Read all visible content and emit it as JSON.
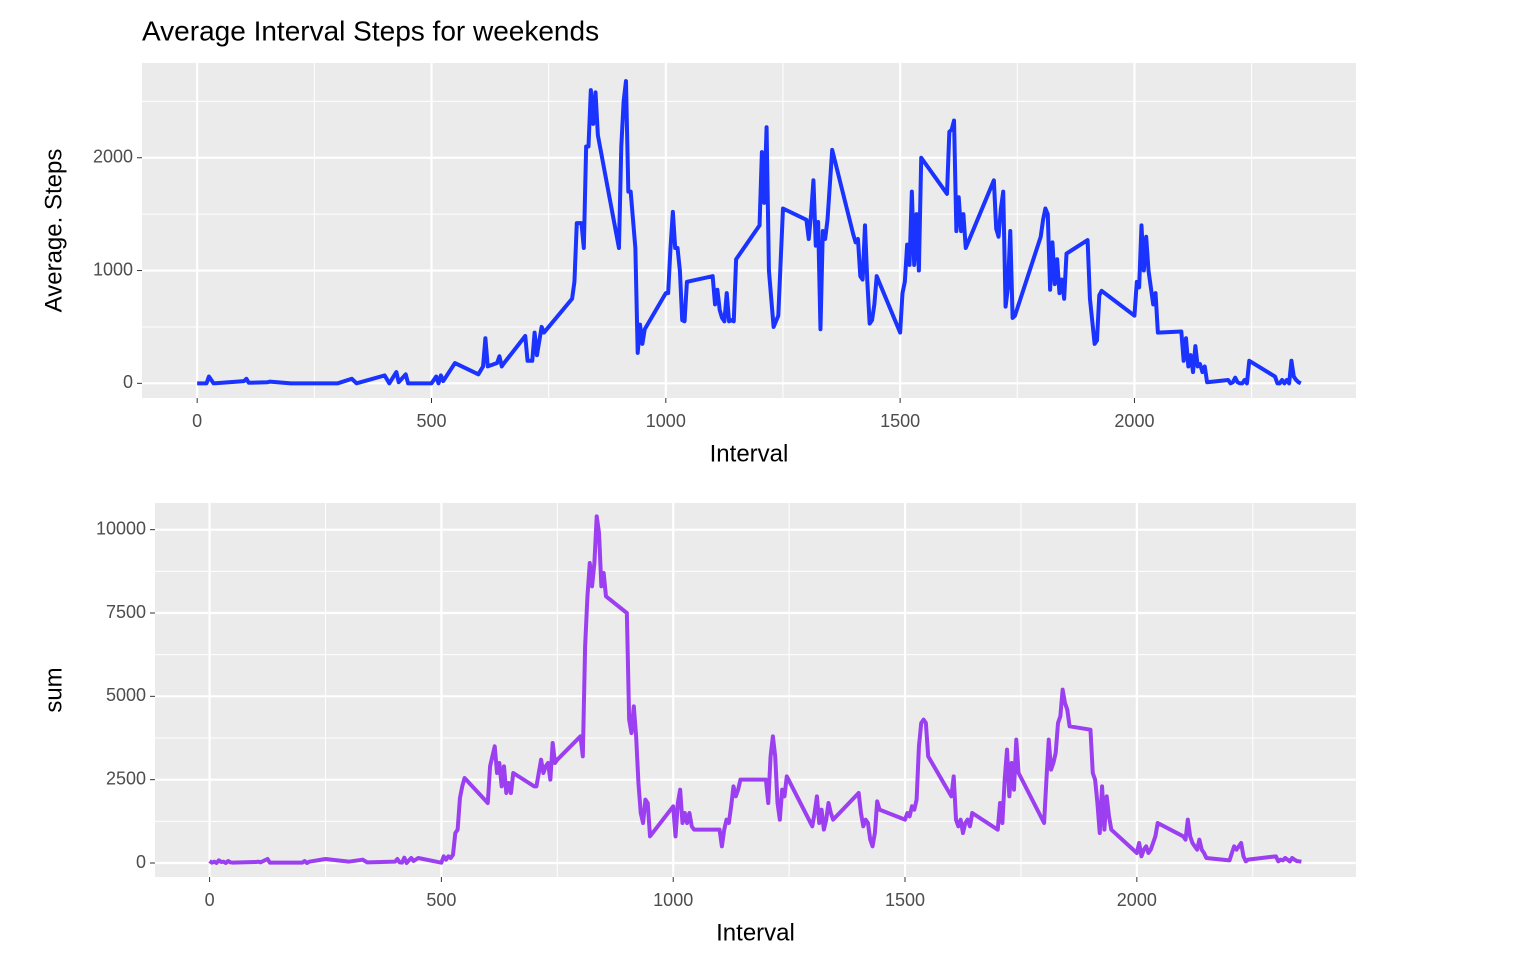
{
  "chart_data": [
    {
      "type": "line",
      "title": "Average Interval Steps for weekends",
      "xlabel": "Interval",
      "ylabel": "Average. Steps",
      "color": "#1a33ff",
      "grid": true,
      "xlim": [
        -117.75,
        2472.75
      ],
      "ylim": [
        -130,
        2840
      ],
      "xticks": [
        0,
        500,
        1000,
        1500,
        2000
      ],
      "yticks": [
        0,
        1000,
        2000
      ],
      "x_minor_grid": [
        250,
        750,
        1250,
        1750,
        2250
      ],
      "y_minor_grid": [
        500,
        1500,
        2500
      ],
      "x": [
        0,
        20,
        25,
        35,
        100,
        105,
        110,
        150,
        155,
        200,
        300,
        330,
        340,
        400,
        410,
        425,
        430,
        445,
        450,
        500,
        510,
        515,
        520,
        525,
        550,
        600,
        610,
        615,
        620,
        640,
        645,
        650,
        655,
        700,
        705,
        715,
        720,
        725,
        735,
        740,
        800,
        805,
        810,
        820,
        825,
        830,
        835,
        840,
        845,
        850,
        855,
        900,
        905,
        910,
        915,
        920,
        925,
        935,
        940,
        945,
        950,
        955,
        1000,
        1005,
        1010,
        1015,
        1020,
        1025,
        1030,
        1035,
        1040,
        1045,
        1100,
        1105,
        1110,
        1115,
        1120,
        1125,
        1130,
        1135,
        1140,
        1145,
        1150,
        1200,
        1205,
        1210,
        1215,
        1220,
        1230,
        1240,
        1250,
        1300,
        1305,
        1310,
        1315,
        1320,
        1325,
        1330,
        1335,
        1340,
        1345,
        1355,
        1400,
        1405,
        1410,
        1415,
        1420,
        1425,
        1430,
        1435,
        1440,
        1445,
        1450,
        1500,
        1505,
        1510,
        1515,
        1520,
        1525,
        1530,
        1535,
        1540,
        1545,
        1600,
        1605,
        1610,
        1615,
        1620,
        1625,
        1630,
        1635,
        1640,
        1700,
        1705,
        1710,
        1715,
        1720,
        1725,
        1730,
        1735,
        1740,
        1745,
        1800,
        1805,
        1810,
        1815,
        1820,
        1825,
        1830,
        1835,
        1840,
        1845,
        1850,
        1855,
        1900,
        1905,
        1910,
        1915,
        1920,
        1925,
        1930,
        2000,
        2005,
        2010,
        2015,
        2020,
        2025,
        2030,
        2035,
        2040,
        2045,
        2050,
        2100,
        2105,
        2110,
        2115,
        2120,
        2125,
        2130,
        2135,
        2140,
        2145,
        2150,
        2155,
        2200,
        2205,
        2210,
        2215,
        2220,
        2225,
        2230,
        2235,
        2240,
        2245,
        2300,
        2305,
        2310,
        2315,
        2320,
        2325,
        2330,
        2335,
        2340,
        2345,
        2350,
        2355
      ],
      "values": [
        0,
        0,
        60,
        0,
        20,
        40,
        5,
        10,
        15,
        0,
        0,
        40,
        0,
        70,
        0,
        100,
        10,
        80,
        0,
        0,
        60,
        0,
        70,
        20,
        180,
        80,
        150,
        400,
        150,
        180,
        240,
        150,
        180,
        420,
        200,
        200,
        450,
        250,
        500,
        450,
        750,
        900,
        1420,
        1420,
        1200,
        2100,
        2100,
        2600,
        2300,
        2580,
        2200,
        1200,
        2100,
        2500,
        2680,
        1700,
        1700,
        1200,
        270,
        520,
        350,
        480,
        800,
        800,
        1200,
        1520,
        1200,
        1200,
        1000,
        560,
        550,
        900,
        950,
        700,
        830,
        650,
        580,
        550,
        800,
        550,
        560,
        550,
        1100,
        1400,
        2050,
        1600,
        2270,
        1000,
        500,
        600,
        1550,
        1450,
        1280,
        1500,
        1800,
        1220,
        1430,
        480,
        1350,
        1280,
        1450,
        2070,
        1320,
        1250,
        1280,
        950,
        920,
        1400,
        900,
        530,
        560,
        700,
        950,
        450,
        800,
        900,
        1230,
        1050,
        1700,
        1050,
        1500,
        1000,
        2000,
        1680,
        2230,
        2250,
        2330,
        1350,
        1650,
        1350,
        1500,
        1200,
        1800,
        1370,
        1300,
        1550,
        1700,
        680,
        850,
        1350,
        580,
        600,
        1300,
        1450,
        1550,
        1500,
        830,
        1250,
        880,
        1100,
        800,
        920,
        750,
        1150,
        1270,
        750,
        550,
        350,
        380,
        780,
        820,
        600,
        900,
        850,
        1400,
        1000,
        1300,
        1000,
        850,
        700,
        800,
        450,
        460,
        200,
        400,
        150,
        250,
        100,
        330,
        150,
        170,
        100,
        150,
        10,
        30,
        0,
        10,
        50,
        10,
        0,
        0,
        30,
        0,
        200,
        60,
        0,
        0,
        30,
        0,
        30,
        0,
        200,
        60,
        30,
        10,
        0
      ]
    },
    {
      "type": "line",
      "xlabel": "Interval",
      "ylabel": "sum",
      "color": "#9b3ff0",
      "grid": true,
      "xlim": [
        -117.75,
        2472.75
      ],
      "ylim": [
        -420,
        10800
      ],
      "xticks": [
        0,
        500,
        1000,
        1500,
        2000
      ],
      "yticks": [
        0,
        2500,
        5000,
        7500,
        10000
      ],
      "x_minor_grid": [
        250,
        750,
        1250,
        1750,
        2250
      ],
      "y_minor_grid": [
        1250,
        3750,
        6250,
        8750
      ],
      "x": [
        0,
        5,
        10,
        15,
        20,
        25,
        30,
        35,
        40,
        45,
        50,
        100,
        105,
        110,
        125,
        130,
        200,
        205,
        210,
        215,
        250,
        300,
        330,
        340,
        400,
        405,
        410,
        415,
        420,
        425,
        430,
        435,
        440,
        450,
        500,
        505,
        510,
        515,
        520,
        525,
        530,
        535,
        540,
        545,
        550,
        600,
        605,
        610,
        615,
        620,
        625,
        630,
        635,
        640,
        645,
        650,
        655,
        700,
        705,
        710,
        715,
        720,
        725,
        730,
        735,
        740,
        745,
        750,
        800,
        805,
        810,
        815,
        820,
        825,
        830,
        835,
        840,
        845,
        850,
        855,
        900,
        905,
        910,
        915,
        920,
        925,
        930,
        935,
        940,
        945,
        950,
        1000,
        1005,
        1010,
        1015,
        1020,
        1025,
        1030,
        1035,
        1040,
        1045,
        1100,
        1105,
        1110,
        1115,
        1120,
        1125,
        1130,
        1135,
        1140,
        1145,
        1200,
        1205,
        1210,
        1215,
        1220,
        1225,
        1230,
        1235,
        1240,
        1245,
        1300,
        1305,
        1310,
        1315,
        1320,
        1325,
        1330,
        1335,
        1340,
        1345,
        1400,
        1405,
        1410,
        1415,
        1420,
        1425,
        1430,
        1435,
        1440,
        1445,
        1500,
        1505,
        1510,
        1515,
        1520,
        1525,
        1530,
        1535,
        1540,
        1545,
        1550,
        1600,
        1605,
        1610,
        1615,
        1620,
        1625,
        1630,
        1635,
        1640,
        1645,
        1700,
        1705,
        1710,
        1715,
        1720,
        1725,
        1730,
        1735,
        1740,
        1745,
        1800,
        1805,
        1810,
        1815,
        1820,
        1825,
        1830,
        1835,
        1840,
        1845,
        1850,
        1855,
        1900,
        1905,
        1910,
        1915,
        1920,
        1925,
        1930,
        1935,
        1940,
        1945,
        2000,
        2005,
        2010,
        2015,
        2020,
        2025,
        2030,
        2035,
        2040,
        2045,
        2100,
        2105,
        2110,
        2115,
        2120,
        2125,
        2130,
        2135,
        2140,
        2145,
        2150,
        2200,
        2205,
        2210,
        2215,
        2220,
        2225,
        2230,
        2235,
        2240,
        2300,
        2305,
        2310,
        2315,
        2320,
        2325,
        2330,
        2335,
        2340,
        2345,
        2350,
        2355
      ],
      "values": [
        60,
        10,
        40,
        0,
        80,
        30,
        40,
        0,
        60,
        20,
        10,
        30,
        40,
        20,
        120,
        10,
        10,
        60,
        0,
        40,
        120,
        40,
        100,
        20,
        40,
        120,
        20,
        10,
        160,
        0,
        80,
        150,
        60,
        150,
        10,
        200,
        100,
        200,
        150,
        250,
        900,
        1000,
        1950,
        2300,
        2550,
        1800,
        2900,
        3200,
        3500,
        2700,
        3000,
        2300,
        2900,
        2100,
        2400,
        2100,
        2700,
        2300,
        2300,
        2700,
        3100,
        2700,
        2900,
        3000,
        2500,
        3600,
        3000,
        3100,
        3800,
        3200,
        6500,
        8000,
        9000,
        8300,
        9000,
        10400,
        9900,
        8300,
        8700,
        8000,
        7500,
        4300,
        3900,
        4700,
        3800,
        2400,
        1500,
        1200,
        1900,
        1800,
        800,
        1700,
        800,
        1800,
        2200,
        1200,
        1500,
        1200,
        1500,
        1100,
        1000,
        1000,
        500,
        1000,
        1300,
        1200,
        1700,
        2300,
        2000,
        2200,
        2500,
        2500,
        1800,
        3200,
        3800,
        3200,
        1800,
        1300,
        2200,
        2000,
        2600,
        1100,
        1500,
        2000,
        1200,
        1600,
        1000,
        1300,
        1800,
        1500,
        1300,
        2100,
        1500,
        1100,
        1300,
        1200,
        700,
        500,
        900,
        1850,
        1600,
        1300,
        1500,
        1400,
        1700,
        1600,
        1900,
        3500,
        4200,
        4300,
        4200,
        3200,
        2000,
        2600,
        1300,
        1100,
        1300,
        900,
        1200,
        1300,
        1100,
        1500,
        1000,
        1800,
        1200,
        2500,
        3400,
        2000,
        3000,
        2200,
        3700,
        2700,
        1200,
        2500,
        3700,
        2800,
        3000,
        3300,
        4200,
        4400,
        5200,
        4800,
        4600,
        4100,
        4000,
        2700,
        2500,
        1800,
        900,
        2300,
        1000,
        2000,
        1400,
        1000,
        300,
        600,
        200,
        400,
        500,
        300,
        400,
        600,
        800,
        1200,
        800,
        700,
        1300,
        800,
        600,
        500,
        400,
        700,
        400,
        300,
        150,
        80,
        300,
        500,
        400,
        500,
        600,
        200,
        50,
        100,
        200,
        50,
        100,
        80,
        150,
        100,
        50,
        150,
        100,
        60,
        50,
        40
      ]
    }
  ]
}
